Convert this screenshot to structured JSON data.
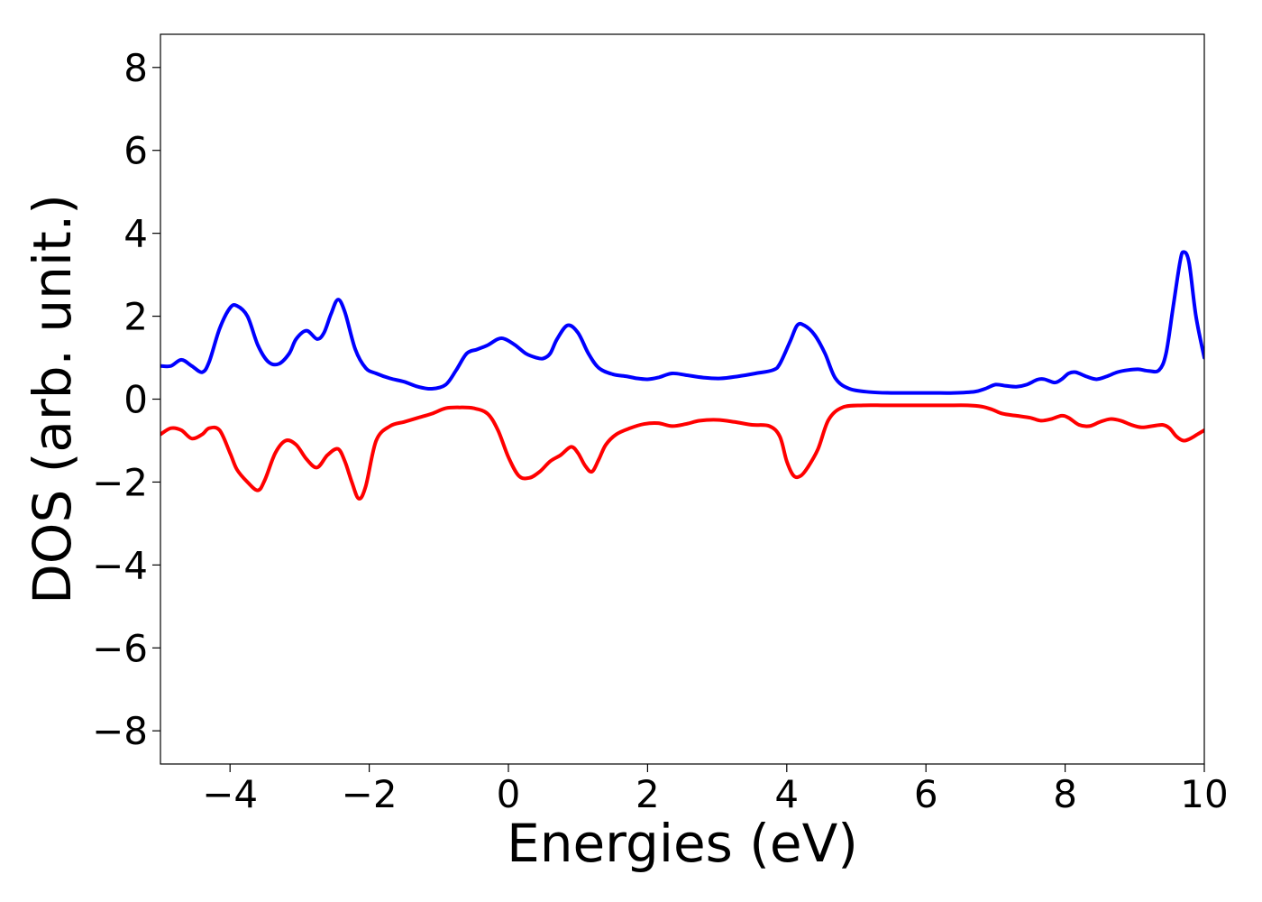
{
  "chart_data": {
    "type": "line",
    "title": "",
    "xlabel": "Energies (eV)",
    "ylabel": "DOS (arb. unit.)",
    "xlim": [
      -5,
      10
    ],
    "ylim": [
      -8.8,
      8.8
    ],
    "xticks": [
      -4,
      -2,
      0,
      2,
      4,
      6,
      8,
      10
    ],
    "xtick_labels": [
      "−4",
      "−2",
      "0",
      "2",
      "4",
      "6",
      "8",
      "10"
    ],
    "yticks": [
      8,
      6,
      4,
      2,
      0,
      -2,
      -4,
      -6,
      -8
    ],
    "ytick_labels": [
      "8",
      "6",
      "4",
      "2",
      "0",
      "−2",
      "−4",
      "−6",
      "−8"
    ],
    "grid": false,
    "legend": "none",
    "series": [
      {
        "color": "#0000ff",
        "x": [
          -5.0,
          -4.85,
          -4.7,
          -4.55,
          -4.4,
          -4.3,
          -4.15,
          -4.0,
          -3.9,
          -3.75,
          -3.6,
          -3.45,
          -3.3,
          -3.15,
          -3.05,
          -2.9,
          -2.75,
          -2.65,
          -2.55,
          -2.45,
          -2.35,
          -2.2,
          -2.05,
          -1.9,
          -1.7,
          -1.5,
          -1.3,
          -1.1,
          -0.9,
          -0.75,
          -0.6,
          -0.45,
          -0.3,
          -0.15,
          -0.05,
          0.1,
          0.25,
          0.4,
          0.5,
          0.6,
          0.7,
          0.85,
          1.0,
          1.15,
          1.3,
          1.5,
          1.7,
          1.85,
          2.0,
          2.15,
          2.35,
          2.55,
          2.8,
          3.05,
          3.3,
          3.55,
          3.8,
          3.9,
          4.05,
          4.15,
          4.25,
          4.4,
          4.55,
          4.7,
          4.9,
          5.2,
          5.5,
          5.8,
          6.1,
          6.4,
          6.7,
          6.85,
          7.0,
          7.15,
          7.3,
          7.45,
          7.6,
          7.7,
          7.85,
          7.95,
          8.05,
          8.15,
          8.3,
          8.45,
          8.6,
          8.75,
          8.9,
          9.05,
          9.2,
          9.35,
          9.45,
          9.55,
          9.65,
          9.7,
          9.78,
          9.88,
          10.0
        ],
        "y": [
          0.8,
          0.8,
          0.95,
          0.8,
          0.65,
          0.9,
          1.7,
          2.2,
          2.25,
          2.0,
          1.3,
          0.9,
          0.85,
          1.1,
          1.45,
          1.65,
          1.45,
          1.6,
          2.05,
          2.4,
          2.1,
          1.2,
          0.75,
          0.62,
          0.5,
          0.42,
          0.3,
          0.25,
          0.35,
          0.7,
          1.1,
          1.2,
          1.3,
          1.45,
          1.45,
          1.3,
          1.1,
          1.0,
          0.98,
          1.1,
          1.45,
          1.78,
          1.6,
          1.1,
          0.75,
          0.6,
          0.55,
          0.5,
          0.48,
          0.52,
          0.62,
          0.58,
          0.52,
          0.5,
          0.55,
          0.62,
          0.7,
          0.85,
          1.4,
          1.78,
          1.78,
          1.55,
          1.1,
          0.5,
          0.25,
          0.17,
          0.15,
          0.15,
          0.15,
          0.15,
          0.18,
          0.25,
          0.35,
          0.32,
          0.3,
          0.35,
          0.47,
          0.48,
          0.4,
          0.48,
          0.62,
          0.65,
          0.55,
          0.48,
          0.55,
          0.65,
          0.7,
          0.72,
          0.68,
          0.7,
          1.1,
          2.2,
          3.3,
          3.55,
          3.3,
          2.0,
          1.0
        ]
      },
      {
        "color": "#ff0000",
        "x": [
          -5.0,
          -4.85,
          -4.7,
          -4.55,
          -4.4,
          -4.3,
          -4.15,
          -4.0,
          -3.9,
          -3.75,
          -3.6,
          -3.5,
          -3.35,
          -3.2,
          -3.05,
          -2.9,
          -2.75,
          -2.6,
          -2.45,
          -2.35,
          -2.25,
          -2.15,
          -2.05,
          -1.9,
          -1.7,
          -1.5,
          -1.3,
          -1.1,
          -0.9,
          -0.7,
          -0.5,
          -0.3,
          -0.15,
          0.0,
          0.15,
          0.3,
          0.45,
          0.6,
          0.75,
          0.9,
          1.0,
          1.1,
          1.2,
          1.3,
          1.4,
          1.55,
          1.75,
          1.95,
          2.15,
          2.35,
          2.55,
          2.75,
          3.0,
          3.25,
          3.5,
          3.75,
          3.9,
          4.0,
          4.1,
          4.2,
          4.3,
          4.45,
          4.6,
          4.8,
          5.1,
          5.4,
          5.7,
          6.0,
          6.3,
          6.6,
          6.8,
          6.95,
          7.1,
          7.3,
          7.5,
          7.65,
          7.8,
          7.95,
          8.05,
          8.2,
          8.35,
          8.5,
          8.65,
          8.8,
          8.95,
          9.1,
          9.25,
          9.4,
          9.5,
          9.6,
          9.7,
          9.8,
          9.9,
          10.0
        ],
        "y": [
          -0.85,
          -0.7,
          -0.75,
          -0.95,
          -0.85,
          -0.7,
          -0.75,
          -1.3,
          -1.7,
          -2.0,
          -2.2,
          -1.95,
          -1.3,
          -1.0,
          -1.1,
          -1.45,
          -1.65,
          -1.35,
          -1.2,
          -1.5,
          -2.0,
          -2.4,
          -2.1,
          -1.0,
          -0.65,
          -0.55,
          -0.45,
          -0.35,
          -0.22,
          -0.2,
          -0.22,
          -0.35,
          -0.75,
          -1.4,
          -1.85,
          -1.9,
          -1.75,
          -1.5,
          -1.35,
          -1.15,
          -1.3,
          -1.6,
          -1.75,
          -1.45,
          -1.1,
          -0.85,
          -0.7,
          -0.6,
          -0.58,
          -0.65,
          -0.6,
          -0.52,
          -0.5,
          -0.55,
          -0.62,
          -0.65,
          -0.9,
          -1.5,
          -1.85,
          -1.85,
          -1.65,
          -1.2,
          -0.5,
          -0.2,
          -0.15,
          -0.15,
          -0.15,
          -0.15,
          -0.15,
          -0.15,
          -0.18,
          -0.25,
          -0.35,
          -0.4,
          -0.45,
          -0.52,
          -0.48,
          -0.4,
          -0.45,
          -0.62,
          -0.65,
          -0.55,
          -0.48,
          -0.52,
          -0.62,
          -0.68,
          -0.65,
          -0.62,
          -0.7,
          -0.9,
          -1.0,
          -0.95,
          -0.85,
          -0.75
        ]
      }
    ]
  }
}
